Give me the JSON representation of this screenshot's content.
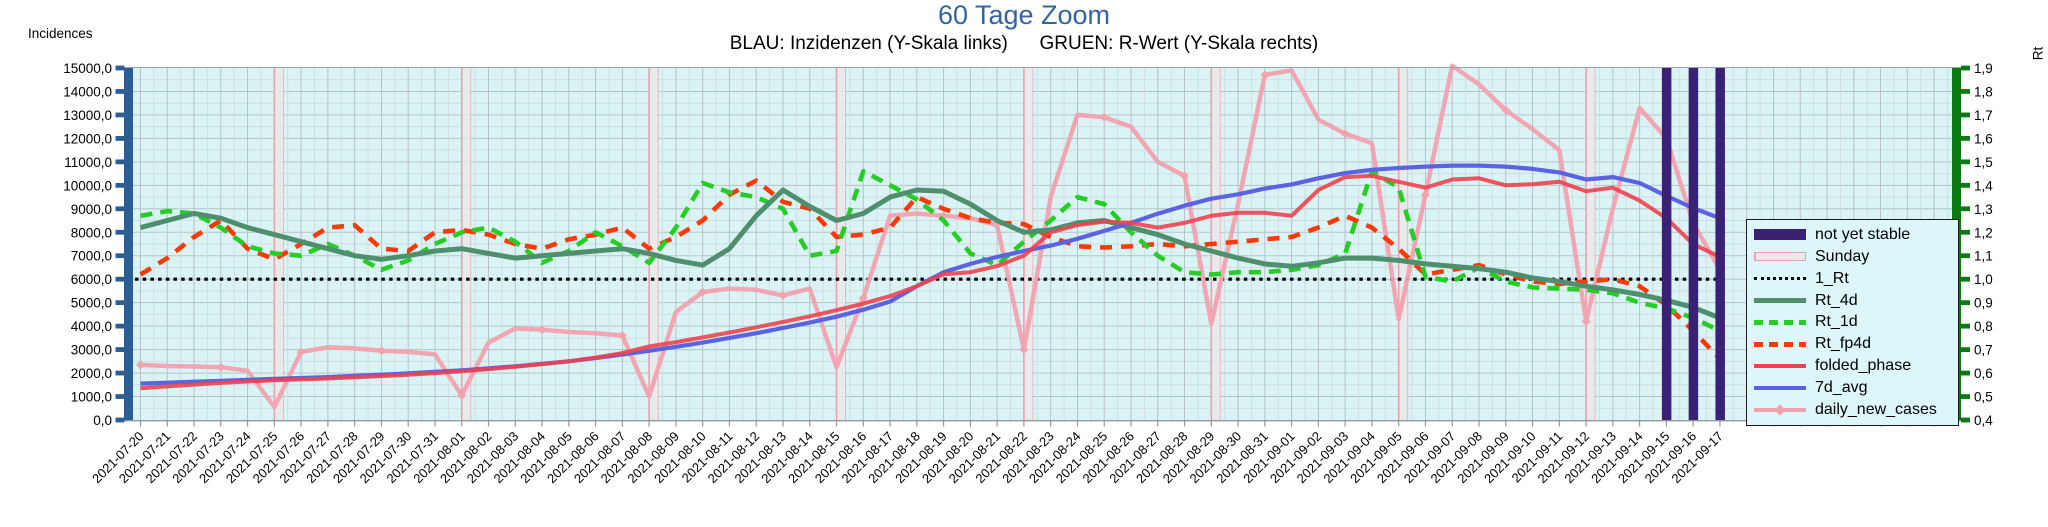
{
  "title": "60 Tage Zoom",
  "subtitle": "BLAU: Inzidenzen (Y-Skala links)      GRUEN: R-Wert (Y-Skala rechts)",
  "axes": {
    "left_label": "Incidences",
    "right_label": "Rt",
    "left_tick_labels": [
      "15000,0",
      "14000,0",
      "13000,0",
      "12000,0",
      "11000,0",
      "10000,0",
      "9000,0",
      "8000,0",
      "7000,0",
      "6000,0",
      "5000,0",
      "4000,0",
      "3000,0",
      "2000,0",
      "1000,0",
      "0,0"
    ],
    "right_tick_labels": [
      "1,9",
      "1,8",
      "1,7",
      "1,6",
      "1,5",
      "1,4",
      "1,3",
      "1,2",
      "1,1",
      "1,0",
      "0,9",
      "0,8",
      "0,7",
      "0,6",
      "0,5",
      "0,4"
    ]
  },
  "colors": {
    "title": "#3464a0",
    "plot_bg": "#daf4f6",
    "grid_major": "#b6c2c6",
    "grid_minor": "#cfdde0",
    "left_axis": "#2d5e93",
    "right_axis": "#0b7a12",
    "not_yet_stable": "#3a2173",
    "sunday_fill": "#e9e9e9",
    "sunday_border": "#f09fae",
    "one_rt": "#000000",
    "rt_4d": "#4e8f6e",
    "rt_1d": "#25cd25",
    "rt_fp4d": "#f63b09",
    "folded_phase": "#ed4250",
    "seven_d_avg": "#5a63e2",
    "daily_new_cases": "#f2a2af"
  },
  "legend": {
    "items": [
      {
        "label": "not yet stable",
        "swatch": "bar",
        "color": "#3a2173"
      },
      {
        "label": "Sunday",
        "swatch": "band",
        "color": "#e9e9e9"
      },
      {
        "label": "1_Rt",
        "swatch": "dotted",
        "color": "#000000"
      },
      {
        "label": "Rt_4d",
        "swatch": "solid",
        "color": "#4e8f6e"
      },
      {
        "label": "Rt_1d",
        "swatch": "dashed",
        "color": "#25cd25"
      },
      {
        "label": "Rt_fp4d",
        "swatch": "dashed",
        "color": "#f63b09"
      },
      {
        "label": "folded_phase",
        "swatch": "solid",
        "color": "#ed4250"
      },
      {
        "label": "7d_avg",
        "swatch": "solid",
        "color": "#5a63e2"
      },
      {
        "label": "daily_new_cases",
        "swatch": "marker",
        "color": "#f2a2af"
      }
    ]
  },
  "chart_data": {
    "type": "line",
    "title": "60 Tage Zoom",
    "ylim_left": [
      0,
      15000
    ],
    "ylim_right": [
      0.4,
      1.9
    ],
    "grid": true,
    "legend_position": "right",
    "reference_line": {
      "name": "1_Rt",
      "rt_value": 1.0
    },
    "sunday_dates": [
      "2021-07-25",
      "2021-08-01",
      "2021-08-08",
      "2021-08-15",
      "2021-08-22",
      "2021-08-29",
      "2021-09-05",
      "2021-09-12"
    ],
    "sunday_day_indices": [
      5,
      12,
      19,
      26,
      33,
      40,
      47,
      54
    ],
    "not_yet_stable_dates": [
      "2021-09-15",
      "2021-09-16",
      "2021-09-17"
    ],
    "not_yet_stable_day_indices": [
      57,
      58,
      59
    ],
    "x": [
      "2021-07-20",
      "2021-07-21",
      "2021-07-22",
      "2021-07-23",
      "2021-07-24",
      "2021-07-25",
      "2021-07-26",
      "2021-07-27",
      "2021-07-28",
      "2021-07-29",
      "2021-07-30",
      "2021-07-31",
      "2021-08-01",
      "2021-08-02",
      "2021-08-03",
      "2021-08-04",
      "2021-08-05",
      "2021-08-06",
      "2021-08-07",
      "2021-08-08",
      "2021-08-09",
      "2021-08-10",
      "2021-08-11",
      "2021-08-12",
      "2021-08-13",
      "2021-08-14",
      "2021-08-15",
      "2021-08-16",
      "2021-08-17",
      "2021-08-18",
      "2021-08-19",
      "2021-08-20",
      "2021-08-21",
      "2021-08-22",
      "2021-08-23",
      "2021-08-24",
      "2021-08-25",
      "2021-08-26",
      "2021-08-27",
      "2021-08-28",
      "2021-08-29",
      "2021-08-30",
      "2021-08-31",
      "2021-09-01",
      "2021-09-02",
      "2021-09-03",
      "2021-09-04",
      "2021-09-05",
      "2021-09-06",
      "2021-09-07",
      "2021-09-08",
      "2021-09-09",
      "2021-09-10",
      "2021-09-11",
      "2021-09-12",
      "2021-09-13",
      "2021-09-14",
      "2021-09-15",
      "2021-09-16",
      "2021-09-17"
    ],
    "series": [
      {
        "name": "daily_new_cases",
        "scale": "left",
        "color": "#f2a2af",
        "style": "solid-marker",
        "values": [
          2350,
          2300,
          2280,
          2250,
          2100,
          550,
          2900,
          3100,
          3050,
          2950,
          2900,
          2800,
          1050,
          3300,
          3900,
          3850,
          3750,
          3700,
          3600,
          1000,
          4600,
          5450,
          5600,
          5550,
          5300,
          5600,
          2250,
          5200,
          8700,
          8800,
          8700,
          8600,
          8300,
          3000,
          9500,
          13000,
          12900,
          12500,
          11000,
          10400,
          4100,
          9200,
          14700,
          14900,
          12800,
          12200,
          11800,
          4300,
          9600,
          15100,
          14300,
          13200,
          12400,
          11500,
          4200,
          9000,
          13300,
          12000,
          8400,
          6400
        ]
      },
      {
        "name": "7d_avg",
        "scale": "left",
        "color": "#5a63e2",
        "style": "solid",
        "values": [
          1550,
          1590,
          1630,
          1670,
          1710,
          1750,
          1790,
          1830,
          1880,
          1930,
          1990,
          2050,
          2120,
          2200,
          2290,
          2390,
          2500,
          2640,
          2790,
          2950,
          3120,
          3300,
          3500,
          3700,
          3920,
          4150,
          4400,
          4700,
          5050,
          5700,
          6300,
          6650,
          6950,
          7200,
          7430,
          7720,
          8060,
          8400,
          8790,
          9130,
          9430,
          9620,
          9860,
          10040,
          10300,
          10520,
          10660,
          10740,
          10800,
          10840,
          10840,
          10800,
          10700,
          10550,
          10250,
          10350,
          10100,
          9550,
          9030,
          8600
        ]
      },
      {
        "name": "folded_phase",
        "scale": "left",
        "color": "#ed4250",
        "style": "solid",
        "values": [
          1350,
          1430,
          1510,
          1580,
          1640,
          1690,
          1730,
          1770,
          1820,
          1870,
          1930,
          2000,
          2080,
          2170,
          2270,
          2380,
          2500,
          2660,
          2850,
          3130,
          3320,
          3520,
          3730,
          3950,
          4180,
          4420,
          4680,
          4960,
          5280,
          5700,
          6215,
          6300,
          6560,
          7000,
          8000,
          8300,
          8450,
          8400,
          8200,
          8400,
          8700,
          8830,
          8830,
          8700,
          9800,
          10350,
          10400,
          10150,
          9900,
          10250,
          10300,
          10000,
          10050,
          10150,
          9750,
          9900,
          9350,
          8600,
          7490,
          6950
        ]
      },
      {
        "name": "Rt_4d",
        "scale": "right",
        "color": "#4e8f6e",
        "style": "solid",
        "values": [
          1.22,
          1.25,
          1.28,
          1.26,
          1.22,
          1.19,
          1.16,
          1.13,
          1.1,
          1.085,
          1.1,
          1.12,
          1.13,
          1.11,
          1.09,
          1.1,
          1.11,
          1.12,
          1.13,
          1.11,
          1.08,
          1.06,
          1.13,
          1.27,
          1.38,
          1.31,
          1.25,
          1.28,
          1.35,
          1.38,
          1.375,
          1.32,
          1.25,
          1.2,
          1.21,
          1.24,
          1.25,
          1.22,
          1.19,
          1.15,
          1.12,
          1.09,
          1.065,
          1.055,
          1.07,
          1.09,
          1.09,
          1.08,
          1.065,
          1.055,
          1.045,
          1.03,
          1.005,
          0.99,
          0.97,
          0.955,
          0.935,
          0.91,
          0.88,
          0.835
        ]
      },
      {
        "name": "Rt_1d",
        "scale": "right",
        "color": "#25cd25",
        "style": "dashed",
        "values": [
          1.27,
          1.29,
          1.28,
          1.22,
          1.14,
          1.11,
          1.1,
          1.15,
          1.1,
          1.04,
          1.08,
          1.15,
          1.2,
          1.22,
          1.16,
          1.07,
          1.12,
          1.2,
          1.14,
          1.07,
          1.22,
          1.41,
          1.37,
          1.35,
          1.3,
          1.1,
          1.12,
          1.46,
          1.4,
          1.34,
          1.25,
          1.11,
          1.06,
          1.16,
          1.25,
          1.35,
          1.32,
          1.2,
          1.1,
          1.03,
          1.02,
          1.03,
          1.03,
          1.04,
          1.06,
          1.11,
          1.46,
          1.39,
          1.01,
          0.99,
          1.05,
          0.99,
          0.965,
          0.96,
          0.955,
          0.94,
          0.9,
          0.875,
          0.835,
          0.78
        ]
      },
      {
        "name": "Rt_fp4d",
        "scale": "right",
        "color": "#f63b09",
        "style": "dashed",
        "values": [
          1.02,
          1.09,
          1.18,
          1.25,
          1.13,
          1.085,
          1.15,
          1.22,
          1.23,
          1.13,
          1.12,
          1.2,
          1.21,
          1.19,
          1.15,
          1.13,
          1.17,
          1.19,
          1.22,
          1.13,
          1.18,
          1.25,
          1.36,
          1.42,
          1.33,
          1.3,
          1.18,
          1.19,
          1.22,
          1.35,
          1.3,
          1.26,
          1.24,
          1.235,
          1.18,
          1.14,
          1.135,
          1.14,
          1.15,
          1.14,
          1.15,
          1.16,
          1.17,
          1.18,
          1.22,
          1.27,
          1.22,
          1.13,
          1.02,
          1.04,
          1.06,
          1.02,
          0.99,
          0.98,
          0.99,
          1.0,
          0.97,
          0.89,
          0.78,
          0.66
        ]
      },
      {
        "name": "1_Rt",
        "scale": "right",
        "color": "#000000",
        "style": "dotted",
        "constant": 1.0
      }
    ]
  }
}
